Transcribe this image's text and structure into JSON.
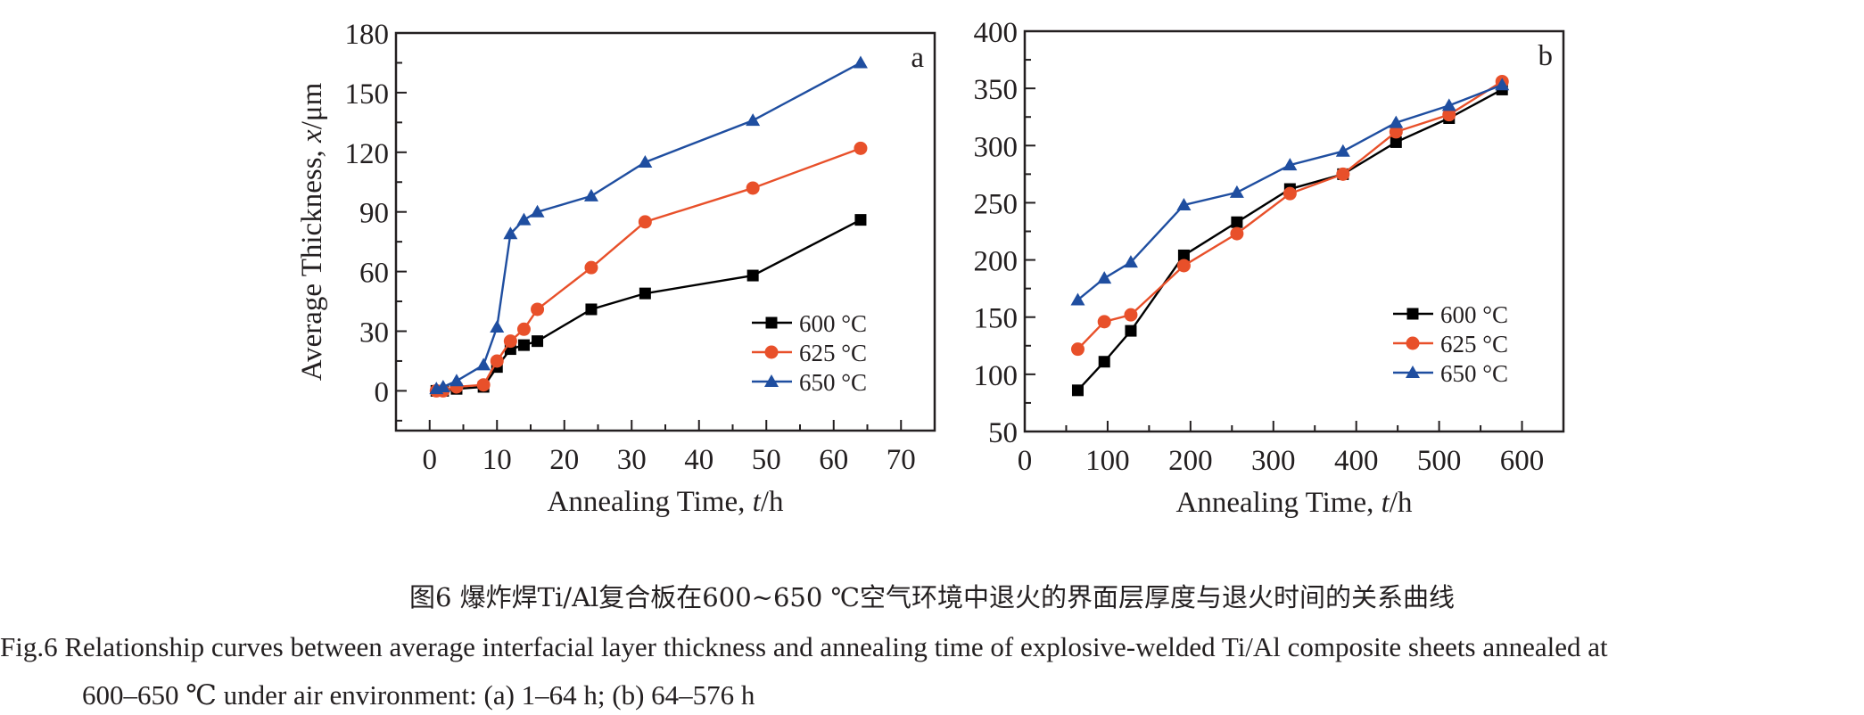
{
  "chart_data": [
    {
      "type": "line",
      "panel_label": "a",
      "xlabel": "Annealing Time, t/h",
      "xlabel_parts": [
        "Annealing Time, ",
        "t",
        "/h"
      ],
      "ylabel": "Average Thickness, x/μm",
      "ylabel_parts": [
        "Average Thickness, ",
        "x",
        "/μm"
      ],
      "xlim": [
        -5,
        75
      ],
      "ylim": [
        -20,
        180
      ],
      "xticks": [
        0,
        10,
        20,
        30,
        40,
        50,
        60,
        70
      ],
      "xticklabels": [
        "0",
        "10",
        "20",
        "30",
        "40",
        "50",
        "60",
        "70"
      ],
      "xminor": [
        -5,
        5,
        15,
        25,
        35,
        45,
        55,
        65,
        75
      ],
      "yticks": [
        0,
        30,
        60,
        90,
        120,
        150,
        180
      ],
      "yticklabels": [
        "0",
        "30",
        "60",
        "90",
        "120",
        "150",
        "180"
      ],
      "yminor": [
        -15,
        15,
        45,
        75,
        105,
        135,
        165
      ],
      "grid": false,
      "legend_position": "bottom-right",
      "x": [
        1,
        2,
        4,
        8,
        10,
        12,
        14,
        16,
        24,
        32,
        48,
        64
      ],
      "series": [
        {
          "name": "600 °C",
          "color": "#000000",
          "marker": "square",
          "values": [
            0,
            0,
            1,
            2,
            12,
            21,
            23,
            25,
            41,
            49,
            58,
            86
          ]
        },
        {
          "name": "625 °C",
          "color": "#E8502A",
          "marker": "circle",
          "values": [
            0,
            0,
            2,
            3,
            15,
            25,
            31,
            41,
            62,
            85,
            102,
            122
          ]
        },
        {
          "name": "650 °C",
          "color": "#1F4EA0",
          "marker": "triangle",
          "values": [
            1,
            2,
            5,
            13,
            32,
            79,
            86,
            90,
            98,
            115,
            136,
            165
          ]
        }
      ]
    },
    {
      "type": "line",
      "panel_label": "b",
      "xlabel": "Annealing Time, t/h",
      "xlabel_parts": [
        "Annealing Time, ",
        "t",
        "/h"
      ],
      "ylabel": "",
      "xlim": [
        0,
        650
      ],
      "ylim": [
        50,
        400
      ],
      "xticks": [
        0,
        100,
        200,
        300,
        400,
        500,
        600
      ],
      "xticklabels": [
        "0",
        "100",
        "200",
        "300",
        "400",
        "500",
        "600"
      ],
      "xminor": [
        50,
        150,
        250,
        350,
        450,
        550
      ],
      "yticks": [
        50,
        100,
        150,
        200,
        250,
        300,
        350,
        400
      ],
      "yticklabels": [
        "50",
        "100",
        "150",
        "200",
        "250",
        "300",
        "350",
        "400"
      ],
      "yminor": [
        75,
        125,
        175,
        225,
        275,
        325,
        375
      ],
      "grid": false,
      "legend_position": "bottom-right",
      "x": [
        64,
        96,
        128,
        192,
        256,
        320,
        384,
        448,
        512,
        576
      ],
      "series": [
        {
          "name": "600 °C",
          "color": "#000000",
          "marker": "square",
          "values": [
            86,
            111,
            138,
            204,
            233,
            262,
            275,
            303,
            324,
            349
          ]
        },
        {
          "name": "625 °C",
          "color": "#E8502A",
          "marker": "circle",
          "values": [
            122,
            146,
            152,
            195,
            223,
            258,
            275,
            312,
            327,
            356
          ]
        },
        {
          "name": "650 °C",
          "color": "#1F4EA0",
          "marker": "triangle",
          "values": [
            165,
            184,
            198,
            248,
            259,
            283,
            295,
            320,
            335,
            353
          ]
        }
      ]
    }
  ],
  "caption": {
    "zh": "图6  爆炸焊Ti/Al复合板在600~650 ℃空气环境中退火的界面层厚度与退火时间的关系曲线",
    "en_line1": "Fig.6  Relationship curves between average interfacial layer thickness and annealing time of explosive-welded Ti/Al composite sheets annealed at",
    "en_line2": "600–650 ℃ under air environment: (a) 1–64 h; (b) 64–576 h"
  }
}
